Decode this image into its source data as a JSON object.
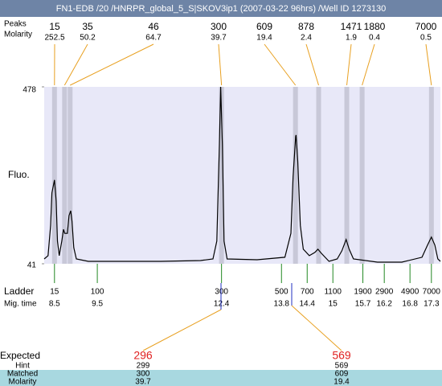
{
  "header": {
    "title": "FN1-EDB /20 /HNRPR_global_5_S|SKOV3ip1 (2007-03-22 96hrs) /Well ID 1273130"
  },
  "chart_data": {
    "type": "electropherogram",
    "y_label": "Fluo.",
    "ylim": [
      41,
      478
    ],
    "yticks": [
      41,
      478
    ],
    "xlim": [
      8.26,
      17.51
    ],
    "trace": {
      "color": "#000000",
      "x": [
        8.26,
        8.35,
        8.41,
        8.44,
        8.5,
        8.54,
        8.57,
        8.61,
        8.67,
        8.71,
        8.74,
        8.8,
        8.84,
        8.88,
        8.91,
        8.95,
        9.01,
        9.29,
        10.04,
        10.98,
        11.91,
        12.2,
        12.29,
        12.35,
        12.38,
        12.42,
        12.46,
        12.53,
        13.23,
        13.88,
        14.02,
        14.07,
        14.13,
        14.14,
        14.18,
        14.24,
        14.31,
        14.45,
        14.58,
        14.65,
        14.73,
        14.91,
        15.1,
        15.21,
        15.31,
        15.38,
        15.48,
        16.04,
        16.61,
        17.08,
        17.21,
        17.3,
        17.38,
        17.45,
        17.51
      ],
      "y": [
        53,
        61,
        136,
        216,
        248,
        196,
        97,
        61,
        97,
        126,
        116,
        116,
        160,
        172,
        146,
        81,
        53,
        47,
        47,
        47,
        49,
        53,
        97,
        335,
        478,
        335,
        97,
        53,
        51,
        57,
        116,
        256,
        355,
        359,
        295,
        136,
        77,
        61,
        69,
        77,
        67,
        47,
        53,
        73,
        101,
        77,
        53,
        45,
        45,
        57,
        87,
        107,
        87,
        53,
        47
      ]
    },
    "peaks": {
      "label": "Peaks",
      "molarity_label": "Molarity",
      "band_color": "#c8c8d8",
      "line_color": "#e8a020",
      "sizes": [
        15,
        35,
        46,
        300,
        609,
        878,
        1471,
        1880,
        7000
      ],
      "molarity": [
        252.5,
        50.2,
        64.7,
        39.7,
        19.4,
        2.4,
        1.9,
        0.4,
        0.5
      ]
    },
    "ladder": {
      "label": "Ladder",
      "time_label": "Mig. time",
      "color": "#228822",
      "sizes": [
        15,
        100,
        300,
        500,
        700,
        1100,
        1900,
        2900,
        4900,
        7000
      ],
      "times": [
        8.5,
        9.5,
        12.4,
        13.8,
        14.4,
        15,
        15.7,
        16.2,
        16.8,
        17.3
      ]
    }
  },
  "results": {
    "rows": [
      {
        "label": "Expected",
        "values": [
          296,
          569
        ]
      },
      {
        "label": "Hint",
        "values": [
          299,
          569
        ]
      },
      {
        "label": "Matched",
        "values": [
          300,
          609
        ]
      },
      {
        "label": "Molarity",
        "values": [
          39.7,
          19.4
        ]
      }
    ]
  }
}
